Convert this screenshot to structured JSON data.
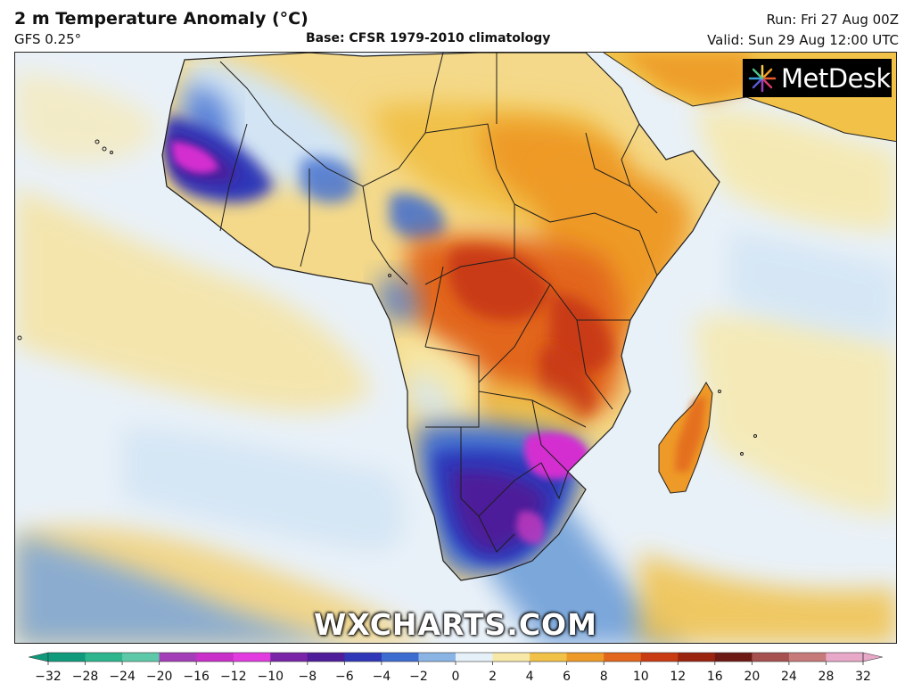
{
  "header": {
    "title": "2 m Temperature Anomaly (°C)",
    "model": "GFS 0.25°",
    "base": "Base: CFSR 1979-2010 climatology",
    "run": "Run: Fri 27 Aug 00Z",
    "valid": "Valid: Sun 29 Aug 12:00 UTC"
  },
  "logo": {
    "text": "MetDesk"
  },
  "watermark": "WXCHARTS.COM",
  "legend": {
    "ticks": [
      "−32",
      "−28",
      "−24",
      "−20",
      "−16",
      "−12",
      "−10",
      "−8",
      "−6",
      "−4",
      "−2",
      "0",
      "2",
      "4",
      "6",
      "8",
      "10",
      "12",
      "16",
      "20",
      "24",
      "28",
      "32"
    ],
    "colors": [
      "#0f9a7c",
      "#2db58e",
      "#5ec9a8",
      "#a33db8",
      "#c92fc9",
      "#e23ce0",
      "#7a24a8",
      "#4e1d9a",
      "#2f37b8",
      "#3d6cd0",
      "#8ab4e4",
      "#e6f0f8",
      "#f7e8a8",
      "#f1c148",
      "#ee9a28",
      "#e2661c",
      "#c93b12",
      "#9b2410",
      "#6e1a14",
      "#a65050",
      "#c77a7a",
      "#e8a8c8"
    ]
  },
  "map": {
    "colors": {
      "ocean": "#e9f1f8",
      "ocean_pale_blue": "#d3e5f4",
      "ocean_blue": "#6f9fd8",
      "warm_pale": "#f7e8a8",
      "warm": "#f1c148",
      "orange": "#ee9a28",
      "deep_orange": "#e2661c",
      "red": "#c93b12",
      "cold": "#2f37b8",
      "cold_deep": "#4e1d9a",
      "magenta": "#d42fd0"
    }
  }
}
